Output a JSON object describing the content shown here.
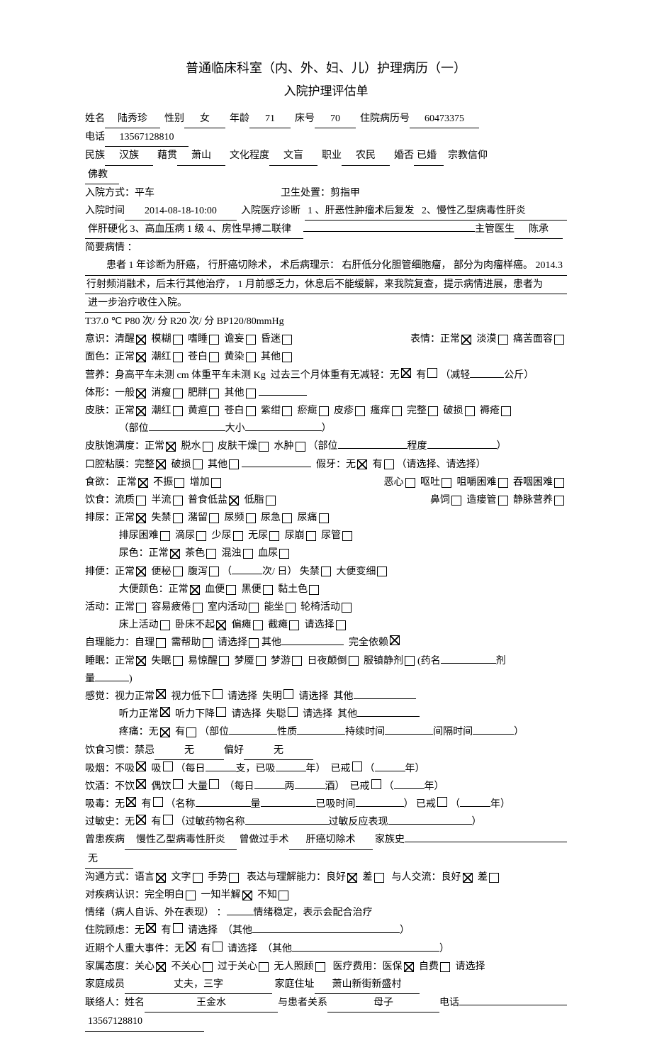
{
  "title": "普通临床科室（内、外、妇、儿）护理病历（一）",
  "subtitle": "入院护理评估单",
  "header": {
    "name_l": "姓名",
    "name": "陆秀珍",
    "sex_l": "性别",
    "sex": "女",
    "age_l": "年龄",
    "age": "71",
    "bed_l": "床号",
    "bed": "70",
    "mrn_l": "住院病历号",
    "mrn": "60473375",
    "phone_l": "电话",
    "phone": "13567128810",
    "nation_l": "民族",
    "nation": "汉族",
    "origin_l": "藉贯",
    "origin": "萧山",
    "edu_l": "文化程度",
    "edu": "文盲",
    "job_l": "职业",
    "job": "农民",
    "marriage_l": "婚否",
    "marriage": "已婚",
    "religion_l": "宗教信仰",
    "religion": "佛教",
    "admit_way_l": "入院方式：",
    "admit_way": "平车",
    "hygiene_l": "卫生处置：",
    "hygiene": "剪指甲",
    "admit_time_l": "入院时间",
    "admit_time": "2014-08-18-10:00",
    "dx_l": "入院医疗诊断",
    "dx": "1 、肝恶性肿瘤术后复发   2、慢性乙型病毒性肝炎伴肝硬化 3、高血压病 1 级 4、房性早搏二联律",
    "doctor_l": "主管医生",
    "doctor": "陈承",
    "brief_l": "简要病情 ：",
    "brief1": "患者 1 年诊断为肝癌，  行肝癌切除术，  术后病理示：  右肝低分化胆管细胞瘤，  部分为肉瘤样癌。  2014.3",
    "brief2": "行射频消融术，后未行其他治疗，   1 月前感乏力，休息后不能缓解，来我院复查，提示病情进展，患者为",
    "brief3": "进一步治疗收住入院。"
  },
  "vitals": "T37.0 ℃ P80 次/ 分 R20 次/ 分 BP120/80mmHg",
  "consciousness": {
    "label": "意识：",
    "opts": [
      [
        "清醒",
        true
      ],
      [
        "模糊",
        false
      ],
      [
        "嗜睡",
        false
      ],
      [
        "谵妄",
        false
      ],
      [
        "昏迷",
        false
      ]
    ],
    "face_l": "表情：",
    "face_opts": [
      [
        "正常",
        true
      ],
      [
        "淡漠",
        false
      ],
      [
        "痛苦面容",
        false
      ]
    ]
  },
  "complexion": {
    "label": "面色：",
    "opts": [
      [
        "正常",
        true
      ],
      [
        "潮红",
        false
      ],
      [
        "苍白",
        false
      ],
      [
        "黄染",
        false
      ],
      [
        "其他",
        false
      ]
    ]
  },
  "nutrition": {
    "label": "营养：",
    "height_l": "身高平车未测  cm",
    "weight_l": "体重平车未测  Kg",
    "q": "过去三个月体重有无减轻：",
    "no": "无",
    "yes": "有",
    "lose1": "（减轻",
    "lose2": "公斤）"
  },
  "body": {
    "label": "体形：",
    "opts": [
      [
        "一般",
        true
      ],
      [
        "消瘦",
        false
      ],
      [
        "肥胖",
        false
      ],
      [
        "其他",
        false
      ]
    ]
  },
  "skin": {
    "label": "皮肤：",
    "opts": [
      [
        "正常",
        true
      ],
      [
        "潮红",
        false
      ],
      [
        "黄疸",
        false
      ],
      [
        "苍白",
        false
      ],
      [
        "紫绀",
        false
      ],
      [
        "瘀癍",
        false
      ],
      [
        "皮疹",
        false
      ],
      [
        "瘙痒",
        false
      ],
      [
        "完整",
        false
      ],
      [
        "破损",
        false
      ],
      [
        "褥疮",
        false
      ]
    ],
    "site_l": "（部位",
    "size_l": "大小",
    "close": "）"
  },
  "turgor": {
    "label": "皮肤饱满度：",
    "opts": [
      [
        "正常",
        true
      ],
      [
        "脱水",
        false
      ],
      [
        "皮肤干燥",
        false
      ],
      [
        "水肿",
        false
      ]
    ],
    "site_l": "（部位",
    "degree_l": "程度",
    "close": "）"
  },
  "oral": {
    "label": "口腔粘膜：",
    "opts": [
      [
        "完整",
        true
      ],
      [
        "破损",
        false
      ],
      [
        "其他",
        false
      ]
    ],
    "denture_l": "假牙：",
    "denture_opts": [
      [
        "无",
        true
      ],
      [
        "有",
        false
      ]
    ],
    "note": "（请选择、请选择）"
  },
  "appetite": {
    "label": "食欲：",
    "opts": [
      [
        "正常",
        true
      ],
      [
        "不振",
        false
      ],
      [
        "增加",
        false
      ]
    ],
    "sym": [
      [
        "恶心",
        false
      ],
      [
        "呕吐",
        false
      ],
      [
        "咀嚼困难",
        false
      ],
      [
        "吞咽困难",
        false
      ]
    ]
  },
  "diet": {
    "label": "饮食：",
    "opts": [
      [
        "流质",
        false
      ],
      [
        "半流",
        false
      ],
      [
        "普食低盐",
        true
      ],
      [
        "低脂",
        false
      ]
    ],
    "route": [
      [
        "鼻饲",
        false
      ],
      [
        "造瘘管",
        false
      ],
      [
        "静脉营养",
        false
      ]
    ]
  },
  "urine": {
    "label": "排尿：",
    "opts": [
      [
        "正常",
        true
      ],
      [
        "失禁",
        false
      ],
      [
        "潴留",
        false
      ],
      [
        "尿频",
        false
      ],
      [
        "尿急",
        false
      ],
      [
        "尿痛",
        false
      ]
    ],
    "opts2": [
      [
        "排尿困难",
        false
      ],
      [
        "滴尿",
        false
      ],
      [
        "少尿",
        false
      ],
      [
        "无尿",
        false
      ],
      [
        "尿崩",
        false
      ],
      [
        "尿管",
        false
      ]
    ],
    "color_l": "尿色：",
    "color_opts": [
      [
        "正常",
        true
      ],
      [
        "茶色",
        false
      ],
      [
        "混浊",
        false
      ],
      [
        "血尿",
        false
      ]
    ]
  },
  "stool": {
    "label": "排便：",
    "opts": [
      [
        "正常",
        true
      ],
      [
        "便秘",
        false
      ],
      [
        "腹泻",
        false
      ]
    ],
    "freq1": "（",
    "freq2": "次/ 日）",
    "opts2": [
      [
        "失禁",
        false
      ],
      [
        "大便变细",
        false
      ]
    ],
    "color_l": "大便颜色：",
    "color_opts": [
      [
        "正常",
        true
      ],
      [
        "血便",
        false
      ],
      [
        "黑便",
        false
      ],
      [
        "黏土色",
        false
      ]
    ]
  },
  "activity": {
    "label": "活动：",
    "opts": [
      [
        "正常",
        false
      ],
      [
        "容易疲倦",
        false
      ],
      [
        "室内活动",
        false
      ],
      [
        "能坐",
        false
      ],
      [
        "轮椅活动",
        false
      ]
    ],
    "opts2": [
      [
        "床上活动",
        false
      ],
      [
        "卧床不起",
        true
      ],
      [
        "偏瘫",
        false
      ],
      [
        "截瘫",
        false
      ],
      [
        "请选择",
        false
      ]
    ]
  },
  "selfcare": {
    "label": "自理能力：",
    "opts": [
      [
        "自理",
        false
      ],
      [
        "需帮助",
        false
      ],
      [
        "请选择",
        false
      ]
    ],
    "other_l": "其他",
    "full_l": "完全依赖",
    "full": true
  },
  "sleep": {
    "label": "睡眠：",
    "opts": [
      [
        "正常",
        true
      ],
      [
        "失眠",
        false
      ],
      [
        "易惊醒",
        false
      ],
      [
        "梦魇",
        false
      ],
      [
        "梦游",
        false
      ],
      [
        "日夜颠倒",
        false
      ],
      [
        "服镇静剂",
        false
      ]
    ],
    "drug1": "(药名",
    "drug2": "剂",
    "drug3": "量",
    "close": ")"
  },
  "sense": {
    "label": "感觉：",
    "v_l": "视力正常",
    "v": true,
    "v2_l": "视力低下",
    "sel": "请选择",
    "blind_l": "失明",
    "other_l": "其他",
    "h_l": "听力正常",
    "h": true,
    "h2_l": "听力下降",
    "deaf_l": "失聪",
    "pain_l": "疼痛：",
    "pain_opts": [
      [
        "无",
        true
      ],
      [
        "有",
        false
      ]
    ],
    "pain_site_l": "（部位",
    "nature_l": "性质",
    "dur_l": "持续时间",
    "int_l": "间隔时间",
    "close": "）"
  },
  "habit": {
    "label": "饮食习惯：",
    "taboo_l": "禁忌",
    "taboo": "无",
    "pref_l": "偏好",
    "pref": "无"
  },
  "smoke": {
    "label": "吸烟：",
    "no": [
      "不吸",
      true
    ],
    "yes": [
      "吸",
      false
    ],
    "per": "（每日",
    "unit": "支，已吸",
    "years": "年）",
    "quit": [
      "已戒",
      false
    ],
    "quit_y1": "（",
    "quit_y2": "年）"
  },
  "drink": {
    "label": "饮酒：",
    "no": [
      "不饮",
      true
    ],
    "occ": [
      "偶饮",
      false
    ],
    "much": [
      "大量",
      false
    ],
    "per": "（每日",
    "liang": "两",
    "wine": "酒）",
    "quit": [
      "已戒",
      false
    ],
    "quit_y1": "（",
    "quit_y2": "年）"
  },
  "drug": {
    "label": "吸毒：",
    "no": [
      "无",
      true
    ],
    "yes": [
      "有",
      false
    ],
    "name_l": "（名称",
    "amt_l": "量",
    "quit_l": "已吸时间",
    "close": "）",
    "quit": [
      "已戒",
      false
    ],
    "quit_y1": "（",
    "quit_y2": "年）"
  },
  "allergy": {
    "label": "过敏史：",
    "no": [
      "无",
      true
    ],
    "yes": [
      "有",
      false
    ],
    "name_l": "（过敏药物名称",
    "react_l": "过敏反应表现",
    "close": "）"
  },
  "history": {
    "label": "曾患疾病",
    "disease": "慢性乙型病毒性肝炎",
    "surgery_l": "曾做过手术",
    "surgery": "肝癌切除术",
    "family_l": "家族史",
    "family": "无"
  },
  "comm": {
    "label": "沟通方式：",
    "opts": [
      [
        "语言",
        true
      ],
      [
        "文字",
        false
      ],
      [
        "手势",
        false
      ]
    ],
    "expr_l": "表达与理解能力：",
    "expr_opts": [
      [
        "良好",
        true
      ],
      [
        "差",
        false
      ]
    ],
    "soc_l": "与人交流：",
    "soc_opts": [
      [
        "良好",
        true
      ],
      [
        "差",
        false
      ]
    ]
  },
  "awareness": {
    "label": "对疾病认识：",
    "opts": [
      [
        "完全明白",
        false
      ],
      [
        "一知半解",
        true
      ],
      [
        "不知",
        false
      ]
    ]
  },
  "mood": {
    "label": "情绪（病人自诉、外在表现） ：",
    "text": "情绪稳定，表示会配合治疗"
  },
  "concern": {
    "label": "住院顾虑：",
    "no": [
      "无",
      true
    ],
    "yes": [
      "有",
      false
    ],
    "sel": "请选择",
    "other_l": "（其他",
    "close": "）"
  },
  "event": {
    "label": "近期个人重大事件：",
    "no": [
      "无",
      true
    ],
    "yes": [
      "有",
      false
    ],
    "sel": "请选择",
    "other_l": "（其他",
    "close": "）"
  },
  "family_att": {
    "label": "家属态度：",
    "opts": [
      [
        "关心",
        true
      ],
      [
        "不关心",
        false
      ],
      [
        "过于关心",
        false
      ],
      [
        "无人照顾",
        false
      ]
    ],
    "fee_l": "医疗费用：",
    "fee_opts": [
      [
        "医保",
        true
      ],
      [
        "自费",
        false
      ]
    ],
    "sel": "请选择"
  },
  "family": {
    "member_l": "家庭成员",
    "member": "丈夫，三字",
    "addr_l": "家庭住址",
    "addr": "萧山新街新盛村"
  },
  "contact": {
    "label": "联络人：",
    "name_l": "姓名",
    "name": "王金水",
    "rel_l": "与患者关系",
    "rel": "母子",
    "phone_l": "电话",
    "phone": "13567128810"
  }
}
